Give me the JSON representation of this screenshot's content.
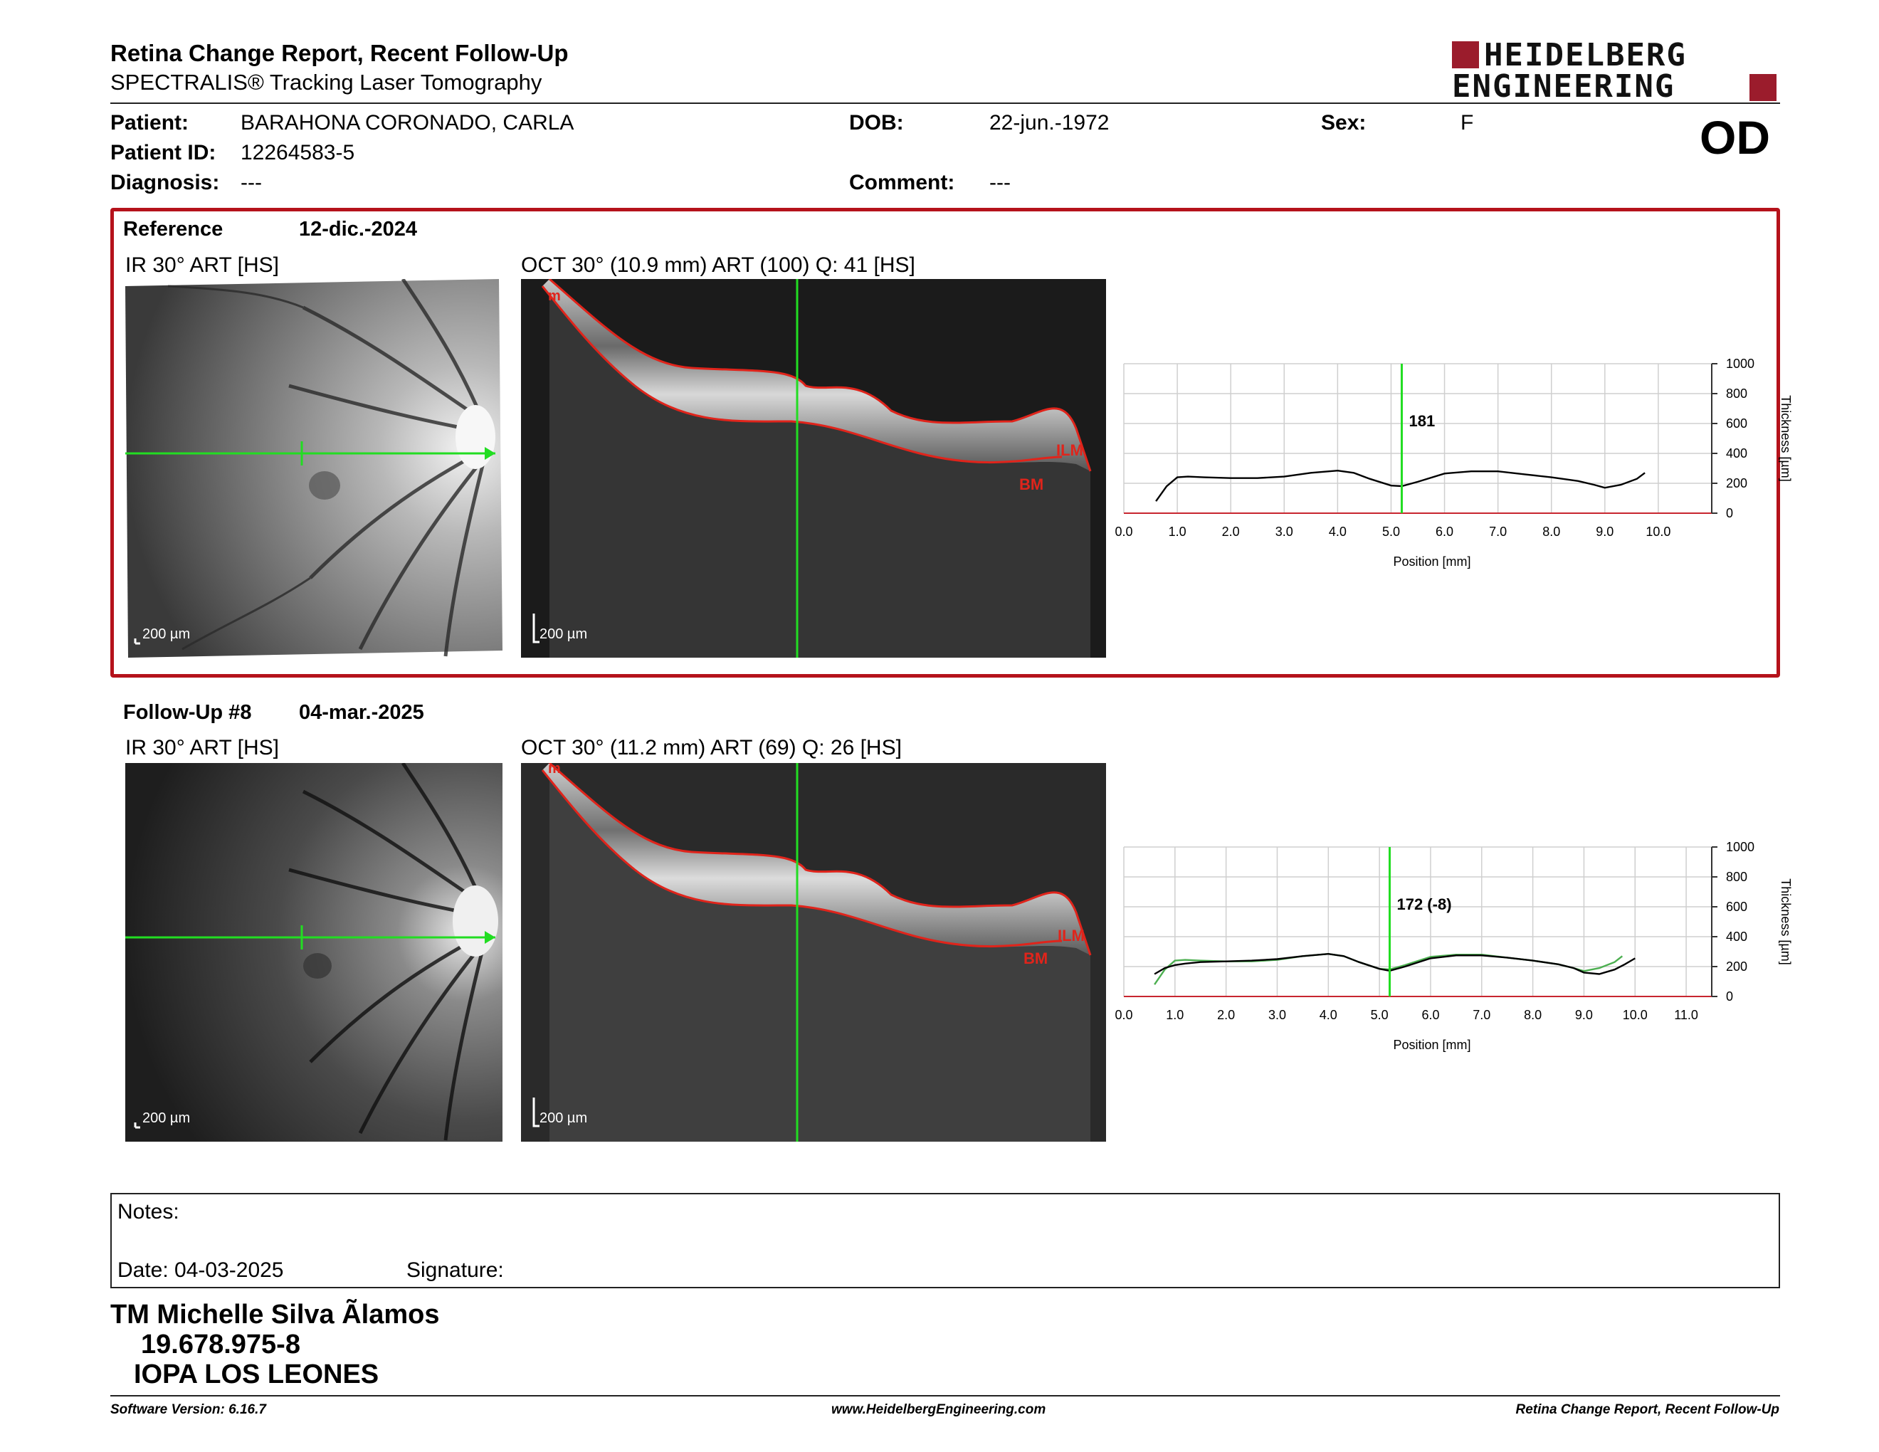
{
  "header": {
    "title": "Retina Change Report, Recent Follow-Up",
    "subtitle": "SPECTRALIS® Tracking Laser Tomography",
    "logo_line1": "HEIDELBERG",
    "logo_line2": "ENGINEERING"
  },
  "patient": {
    "patient_label": "Patient:",
    "patient_name": "BARAHONA CORONADO, CARLA",
    "id_label": "Patient ID:",
    "id_value": "12264583-5",
    "diagnosis_label": "Diagnosis:",
    "diagnosis_value": "---",
    "dob_label": "DOB:",
    "dob_value": "22-jun.-1972",
    "comment_label": "Comment:",
    "comment_value": "---",
    "sex_label": "Sex:",
    "sex_value": "F",
    "eye": "OD"
  },
  "reference": {
    "label": "Reference",
    "date": "12-dic.-2024",
    "ir_title": "IR 30° ART [HS]",
    "oct_title": "OCT 30° (10.9 mm) ART (100) Q: 41 [HS]",
    "ir_scale": "200 µm",
    "oct_scale": "200 µm",
    "ilm_label": "ILM",
    "bm_label": "BM",
    "chart_marker_label": "181"
  },
  "followup": {
    "label": "Follow-Up #8",
    "date": "04-mar.-2025",
    "ir_title": "IR 30° ART [HS]",
    "oct_title": "OCT 30° (11.2 mm) ART (69) Q: 26 [HS]",
    "ir_scale": "200 µm",
    "oct_scale": "200 µm",
    "ilm_label": "ILM",
    "bm_label": "BM",
    "chart_marker_label": "172 (-8)"
  },
  "chart_data": [
    {
      "type": "line",
      "title": "",
      "xlabel": "Position [mm]",
      "ylabel": "Thickness [µm]",
      "xlim": [
        0,
        11
      ],
      "ylim": [
        0,
        1000
      ],
      "xticks": [
        "0.0",
        "1.0",
        "2.0",
        "3.0",
        "4.0",
        "5.0",
        "6.0",
        "7.0",
        "8.0",
        "9.0",
        "10.0"
      ],
      "yticks": [
        "0",
        "200",
        "400",
        "600",
        "800",
        "1000"
      ],
      "marker_x": 5.2,
      "marker_label": "181",
      "grid": true,
      "series": [
        {
          "x": [
            0.6,
            0.8,
            1.0,
            1.2,
            1.5,
            2.0,
            2.5,
            3.0,
            3.5,
            4.0,
            4.3,
            4.6,
            5.0,
            5.2,
            5.5,
            6.0,
            6.5,
            7.0,
            7.5,
            8.0,
            8.5,
            8.8,
            9.0,
            9.3,
            9.6,
            9.75
          ],
          "values": [
            80,
            180,
            240,
            245,
            240,
            235,
            235,
            245,
            270,
            285,
            270,
            230,
            185,
            181,
            210,
            265,
            280,
            280,
            260,
            240,
            215,
            190,
            170,
            190,
            230,
            270
          ],
          "color": "#000000"
        }
      ]
    },
    {
      "type": "line",
      "title": "",
      "xlabel": "Position [mm]",
      "ylabel": "Thickness [µm]",
      "xlim": [
        0,
        11.5
      ],
      "ylim": [
        0,
        1000
      ],
      "xticks": [
        "0.0",
        "1.0",
        "2.0",
        "3.0",
        "4.0",
        "5.0",
        "6.0",
        "7.0",
        "8.0",
        "9.0",
        "10.0",
        "11.0"
      ],
      "yticks": [
        "0",
        "200",
        "400",
        "600",
        "800",
        "1000"
      ],
      "marker_x": 5.2,
      "marker_label": "172 (-8)",
      "grid": true,
      "series": [
        {
          "x": [
            0.6,
            0.8,
            1.0,
            1.2,
            1.5,
            2.0,
            2.5,
            3.0,
            3.5,
            4.0,
            4.3,
            4.6,
            5.0,
            5.2,
            5.5,
            6.0,
            6.5,
            7.0,
            7.5,
            8.0,
            8.5,
            8.8,
            9.0,
            9.3,
            9.6,
            9.8,
            10.0
          ],
          "values": [
            150,
            190,
            210,
            220,
            230,
            235,
            240,
            250,
            270,
            285,
            270,
            230,
            185,
            172,
            200,
            255,
            275,
            275,
            260,
            240,
            215,
            190,
            160,
            150,
            180,
            215,
            255
          ],
          "color": "#000000"
        },
        {
          "x": [
            0.6,
            0.8,
            1.0,
            1.2,
            1.5,
            2.0,
            2.5,
            3.0,
            3.5,
            4.0,
            4.3,
            4.6,
            5.0,
            5.2,
            5.5,
            6.0,
            6.5,
            7.0,
            7.5,
            8.0,
            8.5,
            8.8,
            9.0,
            9.3,
            9.6,
            9.75
          ],
          "values": [
            80,
            180,
            240,
            245,
            240,
            235,
            235,
            245,
            270,
            285,
            270,
            230,
            185,
            181,
            210,
            265,
            280,
            280,
            260,
            240,
            215,
            190,
            170,
            190,
            230,
            270
          ],
          "color": "#4caf50"
        }
      ]
    }
  ],
  "notes": {
    "notes_label": "Notes:",
    "date_label": "Date: 04-03-2025",
    "signature_label": "Signature:"
  },
  "signature": {
    "name": "TM Michelle Silva Ãlamos",
    "rut": "19.678.975-8",
    "institution": "IOPA LOS LEONES"
  },
  "footer": {
    "software": "Software Version: 6.16.7",
    "website": "www.HeidelbergEngineering.com",
    "report_name": "Retina Change Report, Recent Follow-Up"
  }
}
